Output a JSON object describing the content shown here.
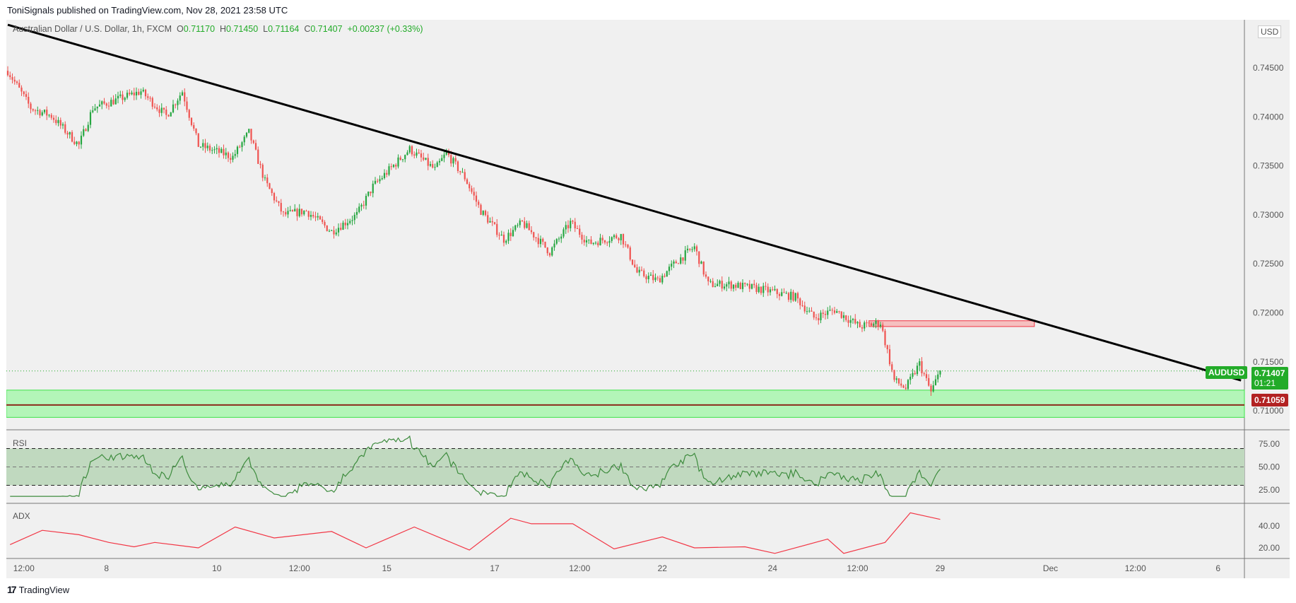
{
  "header": {
    "publisher": "ToniSignals published on TradingView.com, Nov 28, 2021 23:58 UTC"
  },
  "legend": {
    "symbol": "Australian Dollar / U.S. Dollar, 1h, FXCM",
    "o_label": "O",
    "o": "0.71170",
    "h_label": "H",
    "h": "0.71450",
    "l_label": "L",
    "l": "0.71164",
    "c_label": "C",
    "c": "0.71407",
    "change": "+0.00237 (+0.33%)"
  },
  "currency": "USD",
  "tags": {
    "symbol": "AUDUSD",
    "price": "0.71407",
    "countdown": "01:21",
    "level": "0.71059"
  },
  "panes": {
    "rsi": "RSI",
    "adx": "ADX"
  },
  "footer": {
    "brand": "TradingView"
  },
  "colors": {
    "up": "#26a641",
    "down": "#ef5350",
    "trend": "#000000",
    "zone_green": "#b3f5b8",
    "zone_red": "#f5c0c0",
    "level": "#8b2b1a"
  },
  "chart_data": {
    "type": "candlestick",
    "title": "AUDUSD 1h",
    "price_ticks": [
      "0.74500",
      "0.74000",
      "0.73500",
      "0.73000",
      "0.72500",
      "0.72000",
      "0.71500",
      "0.71000"
    ],
    "ylim": [
      0.7085,
      0.7495
    ],
    "time_ticks": [
      {
        "bar": 7,
        "label": "12:00"
      },
      {
        "bar": 43,
        "label": "8"
      },
      {
        "bar": 91,
        "label": "10"
      },
      {
        "bar": 127,
        "label": "12:00"
      },
      {
        "bar": 165,
        "label": "15"
      },
      {
        "bar": 212,
        "label": "17"
      },
      {
        "bar": 249,
        "label": "12:00"
      },
      {
        "bar": 285,
        "label": "22"
      },
      {
        "bar": 333,
        "label": "24"
      },
      {
        "bar": 370,
        "label": "12:00"
      },
      {
        "bar": 406,
        "label": "29"
      },
      {
        "bar": 454,
        "label": "Dec"
      },
      {
        "bar": 491,
        "label": "12:00"
      },
      {
        "bar": 527,
        "label": "6"
      }
    ],
    "price_path": [
      [
        0,
        0.7447
      ],
      [
        10,
        0.7409
      ],
      [
        19,
        0.7401
      ],
      [
        31,
        0.7371
      ],
      [
        37,
        0.7409
      ],
      [
        58,
        0.7426
      ],
      [
        69,
        0.7401
      ],
      [
        76,
        0.7426
      ],
      [
        83,
        0.7371
      ],
      [
        98,
        0.7359
      ],
      [
        105,
        0.7384
      ],
      [
        112,
        0.7334
      ],
      [
        120,
        0.73
      ],
      [
        130,
        0.7304
      ],
      [
        141,
        0.7283
      ],
      [
        152,
        0.73
      ],
      [
        159,
        0.7329
      ],
      [
        175,
        0.7367
      ],
      [
        186,
        0.7346
      ],
      [
        191,
        0.7363
      ],
      [
        199,
        0.7338
      ],
      [
        206,
        0.7304
      ],
      [
        216,
        0.7275
      ],
      [
        224,
        0.7292
      ],
      [
        236,
        0.7262
      ],
      [
        245,
        0.7292
      ],
      [
        253,
        0.7271
      ],
      [
        267,
        0.7279
      ],
      [
        274,
        0.7241
      ],
      [
        283,
        0.7233
      ],
      [
        292,
        0.7254
      ],
      [
        299,
        0.7267
      ],
      [
        305,
        0.7229
      ],
      [
        314,
        0.7229
      ],
      [
        328,
        0.7224
      ],
      [
        343,
        0.7216
      ],
      [
        351,
        0.7195
      ],
      [
        360,
        0.7203
      ],
      [
        371,
        0.7186
      ],
      [
        380,
        0.719
      ],
      [
        386,
        0.7131
      ],
      [
        391,
        0.7123
      ],
      [
        397,
        0.7148
      ],
      [
        402,
        0.7119
      ],
      [
        406,
        0.71407
      ]
    ],
    "trendline": [
      [
        0,
        0.7494
      ],
      [
        537,
        0.7131
      ]
    ],
    "resistance_zone": {
      "from_bar": 375,
      "to_bar": 447,
      "top": 0.71919,
      "bottom": 0.7186
    },
    "support_zone": {
      "top": 0.71211,
      "bottom": 0.70933
    },
    "level_line": 0.71059,
    "last_price": 0.71407,
    "rsi": {
      "levels": [
        70,
        50,
        30
      ],
      "ticks": [
        "75.00",
        "50.00",
        "25.00"
      ],
      "period": 14
    },
    "adx": {
      "ticks": [
        "40.00",
        "20.00"
      ],
      "path": [
        [
          1,
          23
        ],
        [
          15,
          36
        ],
        [
          31,
          32
        ],
        [
          44,
          25
        ],
        [
          55,
          21
        ],
        [
          64,
          25
        ],
        [
          83,
          20
        ],
        [
          99,
          39
        ],
        [
          116,
          29
        ],
        [
          141,
          35
        ],
        [
          156,
          20
        ],
        [
          177,
          39
        ],
        [
          201,
          18
        ],
        [
          219,
          47
        ],
        [
          228,
          42
        ],
        [
          246,
          42
        ],
        [
          264,
          19
        ],
        [
          285,
          30
        ],
        [
          299,
          20
        ],
        [
          321,
          21
        ],
        [
          334,
          15
        ],
        [
          357,
          28
        ],
        [
          364,
          15
        ],
        [
          382,
          25
        ],
        [
          393,
          52
        ],
        [
          406,
          46
        ]
      ]
    }
  }
}
